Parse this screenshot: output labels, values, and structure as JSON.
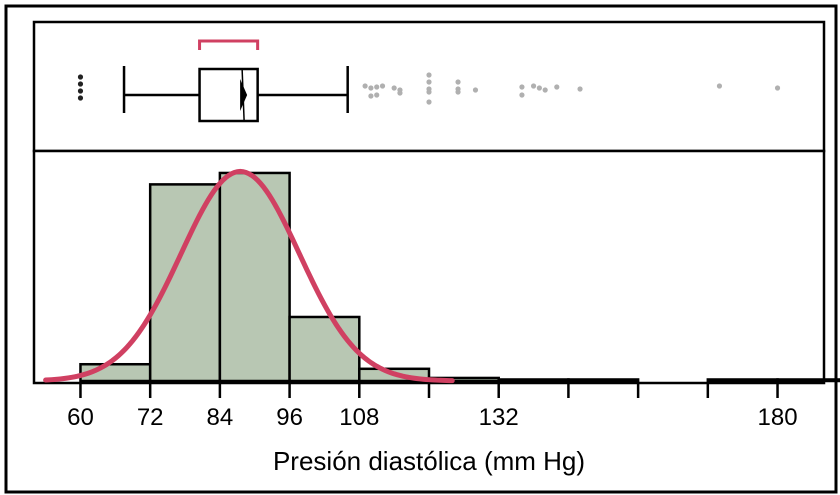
{
  "chart_data": {
    "type": "histogram",
    "xlabel": "Presión diastólica (mm Hg)",
    "xlim": [
      52,
      188
    ],
    "x_ticks": [
      {
        "value": 60,
        "label": "60"
      },
      {
        "value": 72,
        "label": "72"
      },
      {
        "value": 84,
        "label": "84"
      },
      {
        "value": 96,
        "label": "96"
      },
      {
        "value": 108,
        "label": "108"
      },
      {
        "value": 120,
        "label": ""
      },
      {
        "value": 132,
        "label": "132"
      },
      {
        "value": 144,
        "label": ""
      },
      {
        "value": 156,
        "label": ""
      },
      {
        "value": 168,
        "label": ""
      },
      {
        "value": 180,
        "label": "180"
      }
    ],
    "histogram": {
      "bin_width": 12,
      "bins": [
        {
          "start": 60,
          "end": 72,
          "frequency": 0.022
        },
        {
          "start": 72,
          "end": 84,
          "frequency": 0.258
        },
        {
          "start": 84,
          "end": 96,
          "frequency": 0.273
        },
        {
          "start": 96,
          "end": 108,
          "frequency": 0.084
        },
        {
          "start": 108,
          "end": 120,
          "frequency": 0.016
        },
        {
          "start": 120,
          "end": 132,
          "frequency": 0.004
        },
        {
          "start": 132,
          "end": 144,
          "frequency": 0.002
        },
        {
          "start": 144,
          "end": 156,
          "frequency": 0.002
        },
        {
          "start": 156,
          "end": 168,
          "frequency": 0
        },
        {
          "start": 168,
          "end": 180,
          "frequency": 0.002
        },
        {
          "start": 180,
          "end": 192,
          "frequency": 0.002
        }
      ],
      "ymax": 0.29,
      "bar_fill": "#b8c7b3"
    },
    "normal_fit": {
      "mean": 87.5,
      "sd": 10.2,
      "peak": 0.275,
      "x_range": [
        54,
        124
      ],
      "color": "#d04062"
    },
    "box_plot": {
      "whisker_low": 67.5,
      "q1": 80.5,
      "median": 90.5,
      "mean": 88,
      "q3": 90.5,
      "whisker_high": 106,
      "shortest_half": [
        80.5,
        90.5
      ],
      "shortest_half_color": "#d04062",
      "outliers_low": [
        60,
        60,
        60,
        60
      ],
      "outliers_high": [
        109,
        110,
        110,
        111,
        111,
        112,
        114,
        115,
        115,
        120,
        120,
        120,
        120,
        120,
        125,
        125,
        125,
        128,
        136,
        136,
        138,
        139,
        140,
        142,
        146,
        170,
        180
      ],
      "outlier_color_low": "#222222",
      "outlier_color_high": "#b0b0b0"
    }
  }
}
